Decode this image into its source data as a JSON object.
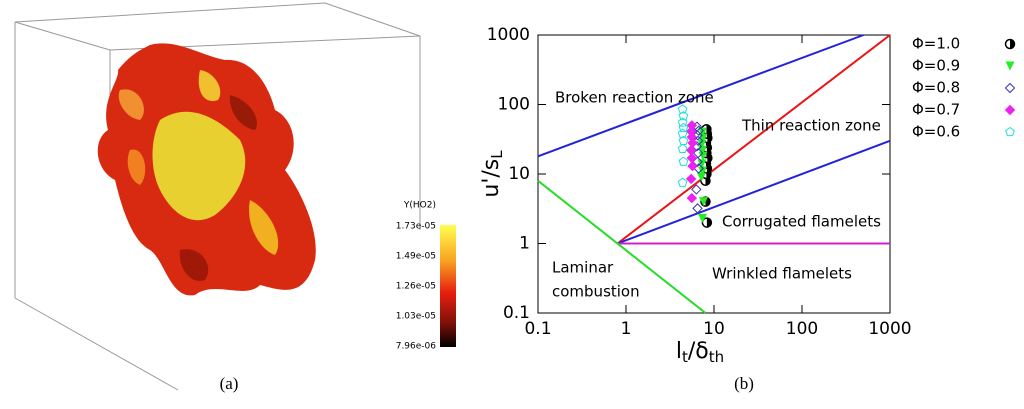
{
  "panel_a": {
    "colorbar": {
      "title": "Y(HO2)",
      "labels": [
        "1.73e-05",
        "1.49e-05",
        "1.26e-05",
        "1.03e-05",
        "7.96e-06"
      ]
    },
    "caption": "(a)"
  },
  "chart_data": {
    "type": "scatter",
    "log_x": true,
    "log_y": true,
    "xlim": [
      0.1,
      1000
    ],
    "ylim": [
      0.1,
      1000
    ],
    "xticks": [
      0.1,
      1,
      10,
      100,
      1000
    ],
    "yticks": [
      0.1,
      1,
      10,
      100,
      1000
    ],
    "xlabel": [
      "l",
      "t",
      "/δ",
      "th"
    ],
    "ylabel": [
      "u'/s",
      "L"
    ],
    "boundaries": [
      {
        "color": "#2222dd",
        "x": [
          0.1,
          500
        ],
        "values": [
          18,
          1000
        ]
      },
      {
        "color": "#ee1111",
        "x": [
          0.8,
          1000
        ],
        "values": [
          1,
          1000
        ]
      },
      {
        "color": "#2222dd",
        "x": [
          0.8,
          1000
        ],
        "values": [
          1,
          30
        ]
      },
      {
        "color": "#cc22cc",
        "x": [
          0.8,
          1000
        ],
        "values": [
          1,
          1
        ]
      },
      {
        "color": "#22dd22",
        "x": [
          0.1,
          8
        ],
        "values": [
          8,
          0.1
        ]
      }
    ],
    "annotations": [
      "Broken reaction zone",
      "Thin reaction zone",
      "Corrugated flamelets",
      "Wrinkled flamelets",
      "Laminar",
      "combustion"
    ],
    "series": [
      {
        "name": "Φ=1.0",
        "color": "#000000",
        "marker": "circle-half",
        "x": [
          8.3,
          8,
          8,
          8.2,
          8.3,
          8.1,
          8.4,
          8.2,
          8.3,
          8.1,
          8.4,
          8.3,
          8.2
        ],
        "values": [
          2,
          4,
          8,
          10,
          12,
          14,
          17,
          20,
          24,
          28,
          33,
          38,
          44
        ]
      },
      {
        "name": "Φ=0.9",
        "color": "#22ee22",
        "marker": "triangle-down",
        "x": [
          7.4,
          7.6,
          7.2,
          7.4,
          7.3,
          7.5,
          7.4,
          7.3,
          7.5,
          7.4
        ],
        "values": [
          2.3,
          4,
          9,
          11,
          14,
          18,
          22,
          27,
          33,
          40
        ]
      },
      {
        "name": "Φ=0.8",
        "color": "#3333aa",
        "marker": "diamond-open",
        "x": [
          6.5,
          6.3,
          6.7,
          6.5,
          6.6,
          6.4,
          6.6,
          6.5,
          6.7,
          6.4
        ],
        "values": [
          3.2,
          6,
          12,
          15,
          20,
          25,
          30,
          36,
          42,
          48
        ]
      },
      {
        "name": "Φ=0.7",
        "color": "#ee22ee",
        "marker": "diamond-filled",
        "x": [
          5.6,
          5.5,
          5.7,
          5.6,
          5.5,
          5.7,
          5.6,
          5.5,
          5.6
        ],
        "values": [
          4.5,
          8.5,
          13,
          17,
          22,
          28,
          34,
          41,
          50
        ]
      },
      {
        "name": "Φ=0.6",
        "color": "#22dddd",
        "marker": "pentagon-open",
        "x": [
          4.4,
          4.5,
          4.4,
          4.5,
          4.4,
          4.5,
          4.4,
          4.5,
          4.4
        ],
        "values": [
          7.5,
          15,
          23,
          30,
          38,
          46,
          55,
          68,
          85
        ]
      }
    ],
    "legend": "outside-right",
    "caption": "(b)"
  }
}
